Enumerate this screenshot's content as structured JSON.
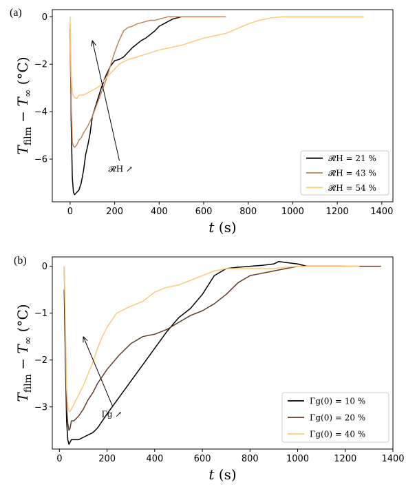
{
  "chart_data": [
    {
      "panel_label": "(a)",
      "type": "line",
      "xlabel": "t (s)",
      "ylabel": "T_film − T_∞ (°C)",
      "xlim": [
        -80,
        1450
      ],
      "ylim": [
        -7.8,
        0.3
      ],
      "xticks": [
        0,
        200,
        400,
        600,
        800,
        1000,
        1200,
        1400
      ],
      "yticks": [
        0,
        -2,
        -4,
        -6
      ],
      "xtick_labels": [
        "0",
        "200",
        "400",
        "600",
        "800",
        "1000",
        "1200",
        "1400"
      ],
      "ytick_labels": [
        "0",
        "−2",
        "−4",
        "−6"
      ],
      "legend": "bottom-right",
      "annotation": {
        "text": "𝓡H ↗",
        "arrow_from": [
          240,
          -6.3
        ],
        "arrow_to": [
          100,
          -1.0
        ]
      },
      "series": [
        {
          "name": "𝓡H = 21 %",
          "color": "#000000",
          "x": [
            0,
            5,
            10,
            15,
            20,
            30,
            40,
            50,
            60,
            70,
            80,
            90,
            100,
            120,
            140,
            160,
            180,
            200,
            220,
            240,
            260,
            280,
            300,
            320,
            340,
            360,
            380,
            400,
            420,
            440,
            460,
            480,
            500
          ],
          "y": [
            -0.5,
            -4.5,
            -6.8,
            -7.4,
            -7.5,
            -7.4,
            -7.3,
            -7.0,
            -6.5,
            -5.8,
            -5.4,
            -4.9,
            -4.2,
            -3.6,
            -3.0,
            -2.5,
            -2.1,
            -1.85,
            -1.8,
            -1.7,
            -1.5,
            -1.3,
            -1.15,
            -1.0,
            -0.9,
            -0.75,
            -0.6,
            -0.4,
            -0.3,
            -0.2,
            -0.1,
            -0.05,
            0.0
          ]
        },
        {
          "name": "𝓡H = 43 %",
          "color": "#c0825a",
          "x": [
            0,
            5,
            10,
            15,
            20,
            30,
            40,
            50,
            60,
            80,
            100,
            120,
            140,
            160,
            180,
            200,
            220,
            240,
            260,
            280,
            300,
            320,
            340,
            360,
            380,
            400,
            420,
            440,
            460,
            500,
            700
          ],
          "y": [
            -0.3,
            -3.8,
            -5.3,
            -5.45,
            -5.5,
            -5.4,
            -5.2,
            -5.1,
            -4.9,
            -4.6,
            -4.2,
            -3.7,
            -3.2,
            -2.7,
            -2.1,
            -1.5,
            -1.0,
            -0.6,
            -0.45,
            -0.4,
            -0.3,
            -0.25,
            -0.2,
            -0.15,
            -0.15,
            -0.1,
            -0.05,
            0.0,
            0.0,
            0.0,
            0.0
          ]
        },
        {
          "name": "𝓡H = 54 %",
          "color": "#ffc879",
          "x": [
            0,
            5,
            10,
            15,
            20,
            30,
            40,
            50,
            60,
            80,
            100,
            120,
            140,
            160,
            180,
            200,
            220,
            240,
            260,
            280,
            300,
            350,
            400,
            450,
            500,
            550,
            600,
            650,
            700,
            750,
            800,
            850,
            900,
            950,
            1000,
            1320
          ],
          "y": [
            0.0,
            -2.5,
            -3.2,
            -3.35,
            -3.4,
            -3.45,
            -3.3,
            -3.3,
            -3.3,
            -3.2,
            -3.1,
            -3.0,
            -2.85,
            -2.6,
            -2.4,
            -2.2,
            -2.0,
            -1.9,
            -1.8,
            -1.75,
            -1.7,
            -1.55,
            -1.4,
            -1.3,
            -1.2,
            -1.05,
            -0.9,
            -0.8,
            -0.7,
            -0.5,
            -0.3,
            -0.15,
            -0.05,
            0.0,
            0.0,
            0.0
          ]
        }
      ]
    },
    {
      "panel_label": "(b)",
      "type": "line",
      "xlabel": "t (s)",
      "ylabel": "T_film − T_∞ (°C)",
      "xlim": [
        -30,
        1400
      ],
      "ylim": [
        -3.9,
        0.2
      ],
      "xticks": [
        0,
        200,
        400,
        600,
        800,
        1000,
        1200,
        1400
      ],
      "yticks": [
        0,
        -1,
        -2,
        -3
      ],
      "xtick_labels": [
        "0",
        "200",
        "400",
        "600",
        "800",
        "1000",
        "1200",
        "1400"
      ],
      "ytick_labels": [
        "0",
        "−1",
        "−2",
        "−3"
      ],
      "legend": "bottom-right",
      "annotation": {
        "text": "Γg ↗",
        "arrow_from": [
          240,
          -3.1
        ],
        "arrow_to": [
          100,
          -1.5
        ]
      },
      "series": [
        {
          "name": "Γg(0) = 10 %",
          "color": "#000000",
          "x": [
            20,
            25,
            30,
            35,
            40,
            45,
            50,
            60,
            80,
            100,
            120,
            140,
            160,
            180,
            200,
            250,
            300,
            350,
            400,
            450,
            500,
            550,
            600,
            650,
            700,
            750,
            800,
            850,
            900,
            920,
            1000,
            1040,
            1200
          ],
          "y": [
            -0.5,
            -2.0,
            -3.3,
            -3.7,
            -3.8,
            -3.75,
            -3.7,
            -3.7,
            -3.7,
            -3.65,
            -3.6,
            -3.55,
            -3.45,
            -3.3,
            -3.15,
            -2.8,
            -2.45,
            -2.1,
            -1.75,
            -1.4,
            -1.1,
            -0.9,
            -0.6,
            -0.2,
            -0.05,
            -0.02,
            0.0,
            0.02,
            0.05,
            0.1,
            0.05,
            0.0,
            0.0
          ]
        },
        {
          "name": "Γg(0) = 20 %",
          "color": "#5e3c2a",
          "x": [
            20,
            25,
            30,
            35,
            40,
            45,
            50,
            60,
            80,
            100,
            120,
            140,
            160,
            180,
            200,
            250,
            300,
            350,
            400,
            450,
            500,
            550,
            600,
            650,
            700,
            750,
            800,
            850,
            900,
            950,
            1000,
            1050,
            1350
          ],
          "y": [
            0.0,
            -1.6,
            -3.0,
            -3.35,
            -3.5,
            -3.45,
            -3.3,
            -3.3,
            -3.2,
            -3.05,
            -2.85,
            -2.7,
            -2.5,
            -2.35,
            -2.2,
            -1.9,
            -1.65,
            -1.5,
            -1.45,
            -1.35,
            -1.2,
            -1.05,
            -0.95,
            -0.8,
            -0.6,
            -0.35,
            -0.2,
            -0.15,
            -0.1,
            -0.05,
            0.0,
            0.0,
            0.0
          ]
        },
        {
          "name": "Γg(0) = 40 %",
          "color": "#ffc879",
          "x": [
            20,
            25,
            30,
            35,
            40,
            45,
            50,
            60,
            80,
            100,
            120,
            140,
            160,
            180,
            200,
            220,
            240,
            260,
            280,
            300,
            350,
            400,
            450,
            500,
            550,
            600,
            650,
            700,
            750,
            800,
            850,
            900,
            950,
            1000,
            1050,
            1260
          ],
          "y": [
            0.0,
            -1.2,
            -2.6,
            -3.0,
            -3.1,
            -3.1,
            -3.05,
            -2.95,
            -2.75,
            -2.55,
            -2.3,
            -2.05,
            -1.75,
            -1.5,
            -1.3,
            -1.15,
            -1.0,
            -0.95,
            -0.9,
            -0.85,
            -0.75,
            -0.55,
            -0.45,
            -0.4,
            -0.3,
            -0.2,
            -0.1,
            -0.05,
            -0.05,
            -0.05,
            -0.05,
            -0.05,
            -0.02,
            0.0,
            0.0,
            0.0
          ]
        }
      ]
    }
  ]
}
